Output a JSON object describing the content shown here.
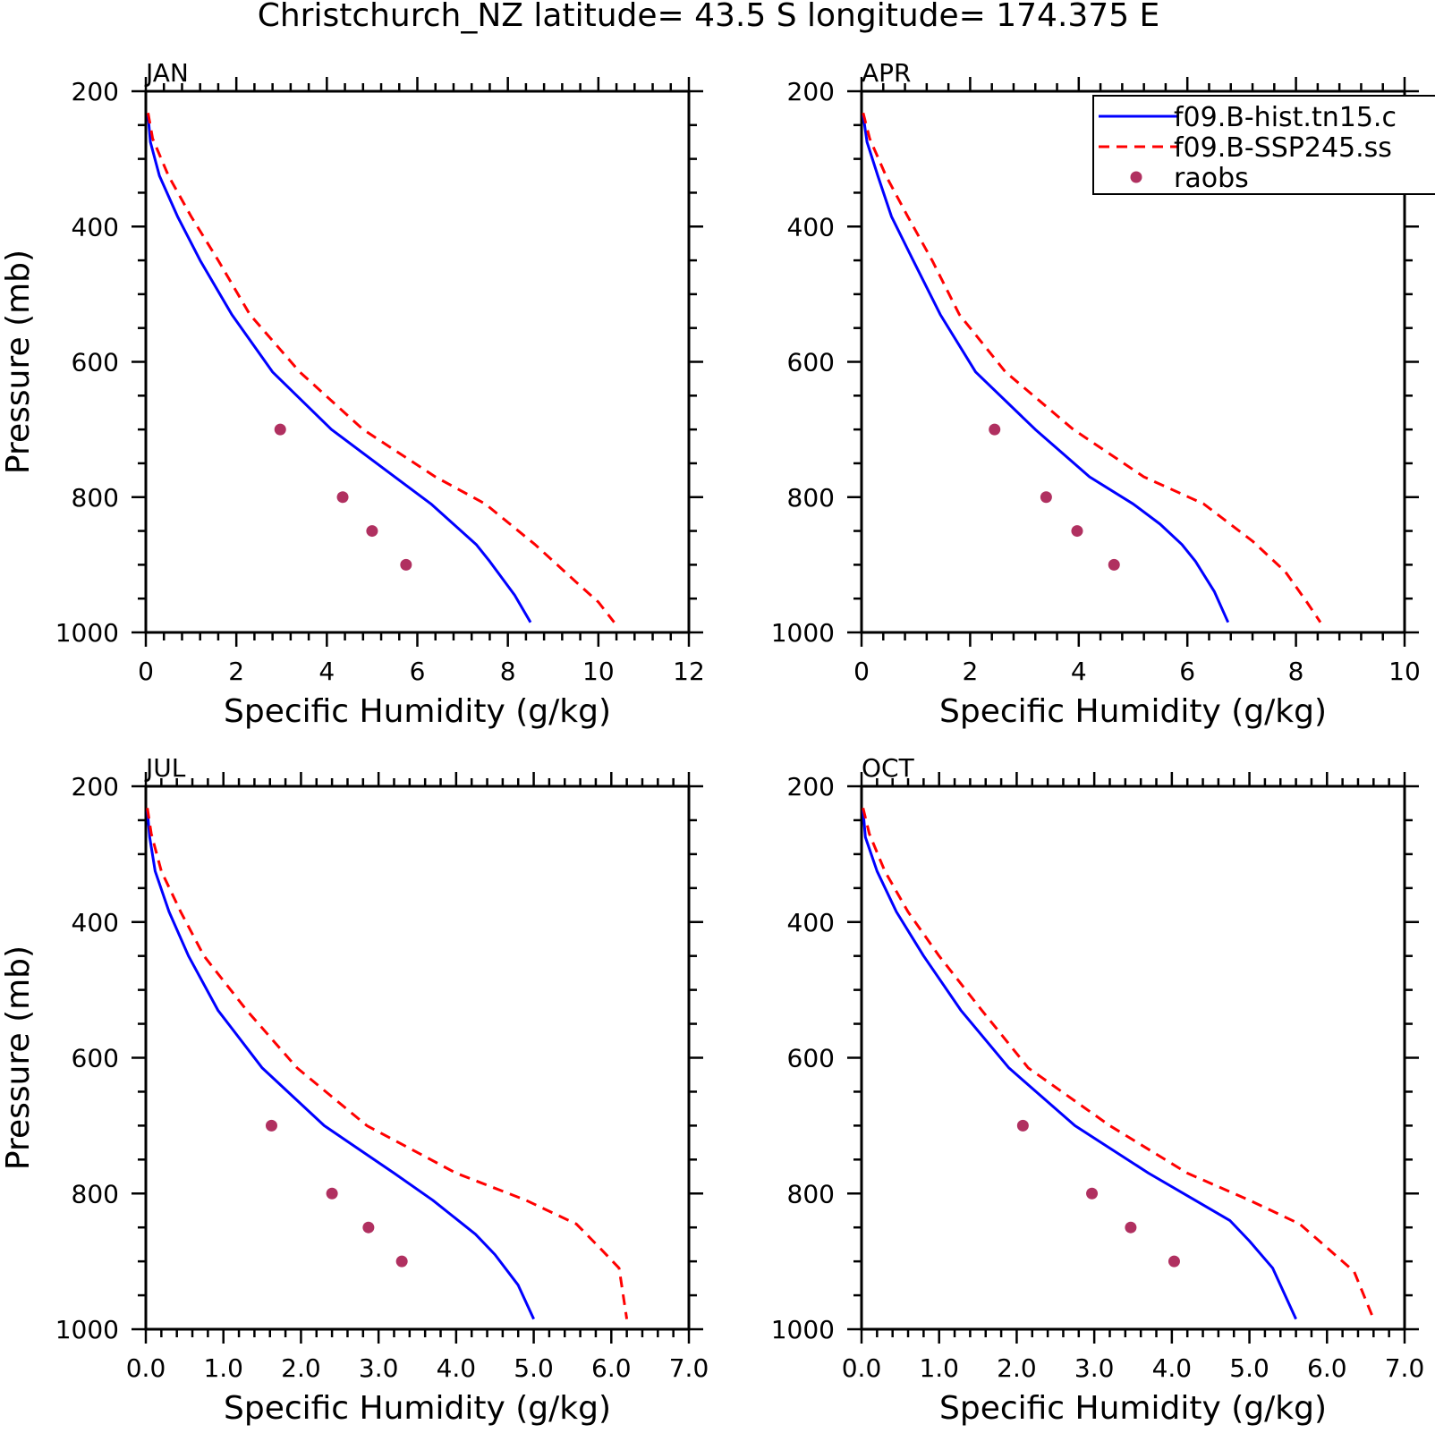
{
  "figure": {
    "title": "Christchurch_NZ  latitude= 43.5 S longitude= 174.375 E"
  },
  "legend": {
    "entries": [
      {
        "label": "f09.B-hist.tn15.c",
        "style": "solid",
        "color": "#0000ff"
      },
      {
        "label": "f09.B-SSP245.ss",
        "style": "dashed",
        "color": "#ff0000"
      },
      {
        "label": "raobs",
        "style": "marker",
        "color": "#b03060"
      }
    ]
  },
  "colors": {
    "model_hist": "#0000ff",
    "model_ssp": "#ff0000",
    "raobs": "#b03060"
  },
  "chart_data": [
    {
      "type": "line",
      "panel_label": "JAN",
      "xlabel": "Specific Humidity (g/kg)",
      "ylabel": "Pressure (mb)",
      "xlim": [
        0,
        12
      ],
      "ylim": [
        200,
        1000
      ],
      "y_inverted": true,
      "xticks": [
        0,
        2,
        4,
        6,
        8,
        10,
        12
      ],
      "xtick_labels": [
        "0",
        "2",
        "4",
        "6",
        "8",
        "10",
        "12"
      ],
      "yticks": [
        200,
        400,
        600,
        800,
        1000
      ],
      "ytick_labels": [
        "200",
        "400",
        "600",
        "800",
        "1000"
      ],
      "series": [
        {
          "key": "hist",
          "points": [
            [
              0.05,
              235
            ],
            [
              0.1,
              275
            ],
            [
              0.3,
              325
            ],
            [
              0.7,
              385
            ],
            [
              1.2,
              450
            ],
            [
              1.9,
              530
            ],
            [
              2.8,
              615
            ],
            [
              4.1,
              700
            ],
            [
              5.5,
              770
            ],
            [
              6.3,
              810
            ],
            [
              6.8,
              840
            ],
            [
              7.3,
              870
            ],
            [
              7.6,
              895
            ],
            [
              8.15,
              945
            ],
            [
              8.5,
              985
            ]
          ]
        },
        {
          "key": "ssp",
          "points": [
            [
              0.05,
              232
            ],
            [
              0.15,
              270
            ],
            [
              0.5,
              325
            ],
            [
              1.0,
              385
            ],
            [
              1.6,
              450
            ],
            [
              2.3,
              530
            ],
            [
              3.4,
              615
            ],
            [
              4.8,
              700
            ],
            [
              6.4,
              770
            ],
            [
              7.5,
              810
            ],
            [
              8.6,
              870
            ],
            [
              9.5,
              925
            ],
            [
              10.0,
              955
            ],
            [
              10.35,
              985
            ]
          ]
        },
        {
          "key": "raobs",
          "points": [
            [
              2.97,
              700
            ],
            [
              4.35,
              800
            ],
            [
              5.0,
              850
            ],
            [
              5.75,
              900
            ]
          ]
        }
      ]
    },
    {
      "type": "line",
      "panel_label": "APR",
      "xlabel": "Specific Humidity (g/kg)",
      "ylabel": "",
      "xlim": [
        0,
        10
      ],
      "ylim": [
        200,
        1000
      ],
      "y_inverted": true,
      "xticks": [
        0,
        2,
        4,
        6,
        8,
        10
      ],
      "xtick_labels": [
        "0",
        "2",
        "4",
        "6",
        "8",
        "10"
      ],
      "yticks": [
        200,
        400,
        600,
        800,
        1000
      ],
      "ytick_labels": [
        "200",
        "400",
        "600",
        "800",
        "1000"
      ],
      "series": [
        {
          "key": "hist",
          "points": [
            [
              0.03,
              235
            ],
            [
              0.1,
              275
            ],
            [
              0.3,
              325
            ],
            [
              0.55,
              385
            ],
            [
              0.95,
              450
            ],
            [
              1.45,
              530
            ],
            [
              2.1,
              615
            ],
            [
              3.2,
              700
            ],
            [
              4.2,
              770
            ],
            [
              5.0,
              810
            ],
            [
              5.5,
              840
            ],
            [
              5.9,
              870
            ],
            [
              6.15,
              895
            ],
            [
              6.5,
              940
            ],
            [
              6.75,
              985
            ]
          ]
        },
        {
          "key": "ssp",
          "points": [
            [
              0.03,
              232
            ],
            [
              0.15,
              270
            ],
            [
              0.45,
              325
            ],
            [
              0.85,
              385
            ],
            [
              1.3,
              450
            ],
            [
              1.8,
              530
            ],
            [
              2.65,
              615
            ],
            [
              3.9,
              700
            ],
            [
              5.2,
              770
            ],
            [
              6.3,
              810
            ],
            [
              7.2,
              865
            ],
            [
              7.8,
              910
            ],
            [
              8.2,
              955
            ],
            [
              8.45,
              985
            ]
          ]
        },
        {
          "key": "raobs",
          "points": [
            [
              2.45,
              700
            ],
            [
              3.4,
              800
            ],
            [
              3.97,
              850
            ],
            [
              4.65,
              900
            ]
          ]
        }
      ]
    },
    {
      "type": "line",
      "panel_label": "JUL",
      "xlabel": "Specific Humidity (g/kg)",
      "ylabel": "Pressure (mb)",
      "xlim": [
        0,
        7
      ],
      "ylim": [
        200,
        1000
      ],
      "y_inverted": true,
      "xticks": [
        0,
        1,
        2,
        3,
        4,
        5,
        6,
        7
      ],
      "xtick_labels": [
        "0.0",
        "1.0",
        "2.0",
        "3.0",
        "4.0",
        "5.0",
        "6.0",
        "7.0"
      ],
      "yticks": [
        200,
        400,
        600,
        800,
        1000
      ],
      "ytick_labels": [
        "200",
        "400",
        "600",
        "800",
        "1000"
      ],
      "series": [
        {
          "key": "hist",
          "points": [
            [
              0.02,
              235
            ],
            [
              0.05,
              275
            ],
            [
              0.12,
              325
            ],
            [
              0.3,
              385
            ],
            [
              0.55,
              450
            ],
            [
              0.93,
              530
            ],
            [
              1.5,
              615
            ],
            [
              2.3,
              700
            ],
            [
              3.2,
              770
            ],
            [
              3.7,
              810
            ],
            [
              4.25,
              860
            ],
            [
              4.5,
              890
            ],
            [
              4.8,
              935
            ],
            [
              5.0,
              985
            ]
          ]
        },
        {
          "key": "ssp",
          "points": [
            [
              0.02,
              232
            ],
            [
              0.07,
              270
            ],
            [
              0.2,
              325
            ],
            [
              0.45,
              385
            ],
            [
              0.75,
              450
            ],
            [
              1.3,
              530
            ],
            [
              1.95,
              615
            ],
            [
              2.85,
              700
            ],
            [
              4.0,
              770
            ],
            [
              4.9,
              810
            ],
            [
              5.55,
              845
            ],
            [
              5.85,
              880
            ],
            [
              6.1,
              910
            ],
            [
              6.2,
              985
            ]
          ]
        },
        {
          "key": "raobs",
          "points": [
            [
              1.62,
              700
            ],
            [
              2.4,
              800
            ],
            [
              2.87,
              850
            ],
            [
              3.3,
              900
            ]
          ]
        }
      ]
    },
    {
      "type": "line",
      "panel_label": "OCT",
      "xlabel": "Specific Humidity (g/kg)",
      "ylabel": "",
      "xlim": [
        0,
        7
      ],
      "ylim": [
        200,
        1000
      ],
      "y_inverted": true,
      "xticks": [
        0,
        1,
        2,
        3,
        4,
        5,
        6,
        7
      ],
      "xtick_labels": [
        "0.0",
        "1.0",
        "2.0",
        "3.0",
        "4.0",
        "5.0",
        "6.0",
        "7.0"
      ],
      "yticks": [
        200,
        400,
        600,
        800,
        1000
      ],
      "ytick_labels": [
        "200",
        "400",
        "600",
        "800",
        "1000"
      ],
      "series": [
        {
          "key": "hist",
          "points": [
            [
              0.02,
              235
            ],
            [
              0.05,
              275
            ],
            [
              0.2,
              325
            ],
            [
              0.45,
              385
            ],
            [
              0.8,
              450
            ],
            [
              1.28,
              530
            ],
            [
              1.9,
              615
            ],
            [
              2.75,
              700
            ],
            [
              3.7,
              770
            ],
            [
              4.3,
              810
            ],
            [
              4.75,
              840
            ],
            [
              5.0,
              870
            ],
            [
              5.3,
              910
            ],
            [
              5.6,
              985
            ]
          ]
        },
        {
          "key": "ssp",
          "points": [
            [
              0.02,
              232
            ],
            [
              0.1,
              270
            ],
            [
              0.3,
              325
            ],
            [
              0.6,
              385
            ],
            [
              1.0,
              450
            ],
            [
              1.55,
              530
            ],
            [
              2.15,
              615
            ],
            [
              3.2,
              700
            ],
            [
              4.2,
              770
            ],
            [
              5.0,
              810
            ],
            [
              5.65,
              845
            ],
            [
              6.0,
              880
            ],
            [
              6.35,
              915
            ],
            [
              6.6,
              985
            ]
          ]
        },
        {
          "key": "raobs",
          "points": [
            [
              2.08,
              700
            ],
            [
              2.97,
              800
            ],
            [
              3.47,
              850
            ],
            [
              4.03,
              900
            ]
          ]
        }
      ]
    }
  ]
}
